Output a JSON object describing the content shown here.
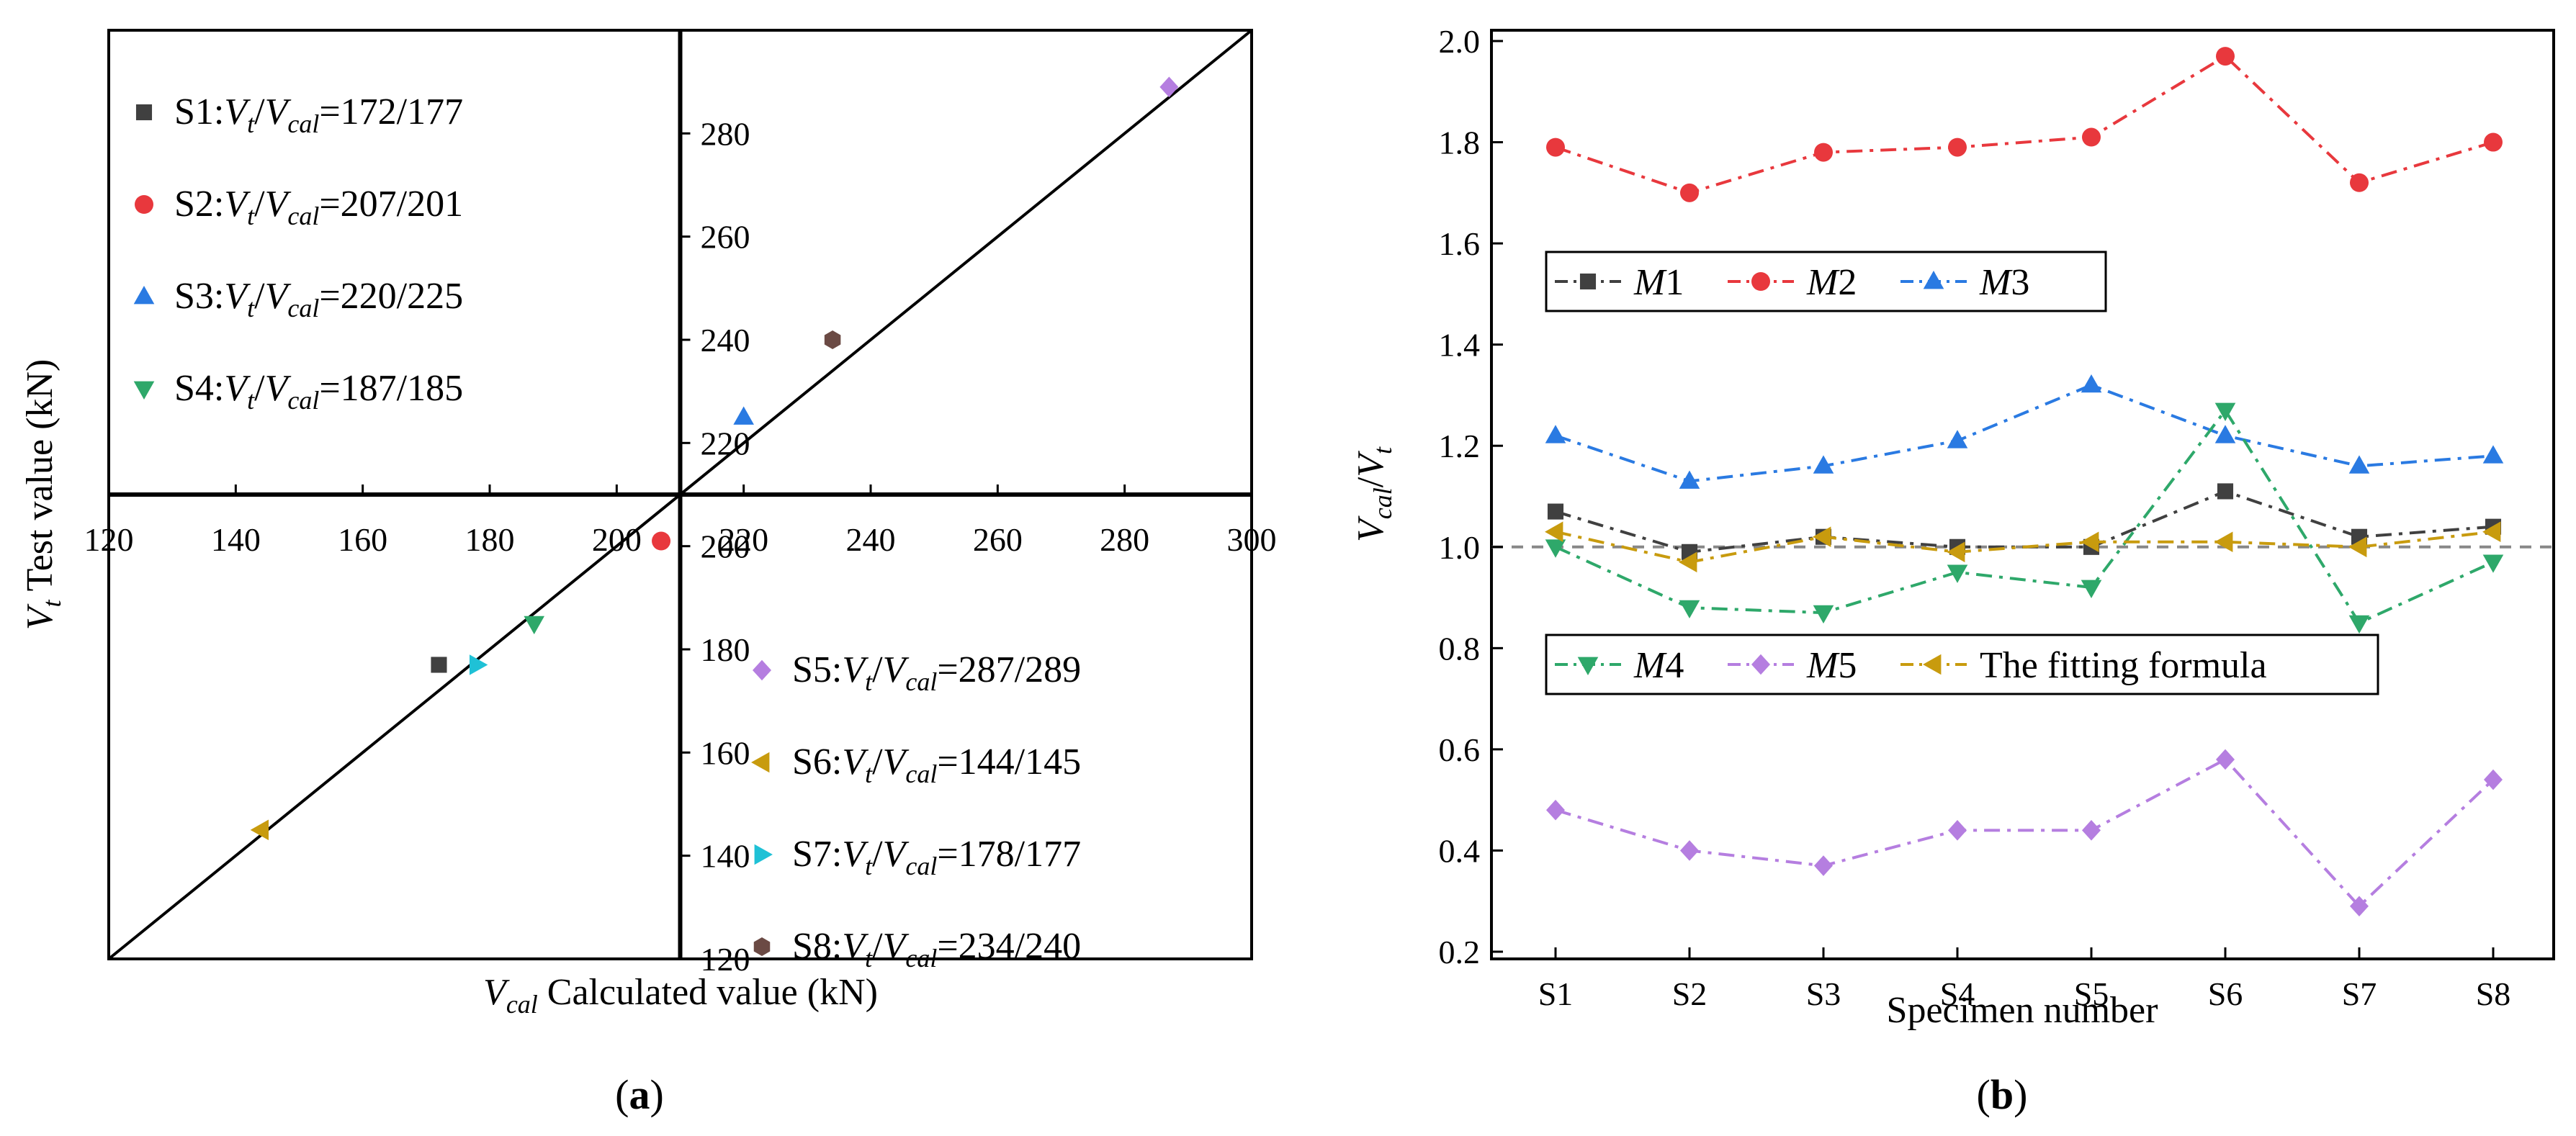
{
  "chart_data": [
    {
      "panel_label": "(a)",
      "type": "scatter",
      "title": "",
      "xlabel": {
        "symbol": "V",
        "sub": "cal",
        "text": " Calculated value (kN)"
      },
      "ylabel": {
        "symbol": "V",
        "sub": "t",
        "text": " Test value (kN)"
      },
      "xlim": [
        120,
        300
      ],
      "ylim": [
        120,
        300
      ],
      "x_axis_crosses_y": 210,
      "y_axis_crosses_x": 210,
      "x_ticks": [
        120,
        140,
        160,
        180,
        200,
        220,
        240,
        260,
        280,
        300
      ],
      "y_ticks": [
        120,
        140,
        160,
        180,
        200,
        220,
        240,
        260,
        280
      ],
      "reference_line": {
        "from": [
          120,
          120
        ],
        "to": [
          300,
          300
        ],
        "color": "#000000"
      },
      "series": [
        {
          "name": "S1",
          "x": 172,
          "y": 177,
          "ratio": "=172/177",
          "marker": "square",
          "color": "#404040"
        },
        {
          "name": "S2",
          "x": 207,
          "y": 201,
          "ratio": "=207/201",
          "marker": "circle",
          "color": "#e8383d"
        },
        {
          "name": "S3",
          "x": 220,
          "y": 225,
          "ratio": "=220/225",
          "marker": "triangle-up",
          "color": "#2a7ae2"
        },
        {
          "name": "S4",
          "x": 187,
          "y": 185,
          "ratio": "=187/185",
          "marker": "triangle-down",
          "color": "#2ea86a"
        },
        {
          "name": "S5",
          "x": 287,
          "y": 289,
          "ratio": "=287/289",
          "marker": "diamond",
          "color": "#b57ee0"
        },
        {
          "name": "S6",
          "x": 144,
          "y": 145,
          "ratio": "=144/145",
          "marker": "triangle-left",
          "color": "#c89b0e"
        },
        {
          "name": "S7",
          "x": 178,
          "y": 177,
          "ratio": "=178/177",
          "marker": "triangle-right",
          "color": "#1fc1d6"
        },
        {
          "name": "S8",
          "x": 234,
          "y": 240,
          "ratio": "=234/240",
          "marker": "hexagon",
          "color": "#6b4a44"
        }
      ],
      "legend_top_left": [
        "S1",
        "S2",
        "S3",
        "S4"
      ],
      "legend_bottom_right": [
        "S5",
        "S6",
        "S7",
        "S8"
      ]
    },
    {
      "panel_label": "(b)",
      "type": "line",
      "title": "",
      "xlabel": "Specimen number",
      "ylabel": {
        "symbol": "V",
        "sub": "cal",
        "mid": "/",
        "symbol2": "V",
        "sub2": "t"
      },
      "categories": [
        "S1",
        "S2",
        "S3",
        "S4",
        "S5",
        "S6",
        "S7",
        "S8"
      ],
      "ylim": [
        0.2,
        2.0
      ],
      "y_ticks": [
        "0.2",
        "0.4",
        "0.6",
        "0.8",
        "1.0",
        "1.2",
        "1.4",
        "1.6",
        "1.8",
        "2.0"
      ],
      "reference_line": {
        "y": 1.0,
        "style": "dashed",
        "color": "#888888"
      },
      "series": [
        {
          "name": "M",
          "num": "1",
          "italic": true,
          "marker": "square",
          "color": "#404040",
          "values": [
            1.07,
            0.99,
            1.02,
            1.0,
            1.0,
            1.11,
            1.02,
            1.04
          ]
        },
        {
          "name": "M",
          "num": "2",
          "italic": true,
          "marker": "circle",
          "color": "#e8383d",
          "values": [
            1.79,
            1.7,
            1.78,
            1.79,
            1.81,
            1.97,
            1.72,
            1.8
          ]
        },
        {
          "name": "M",
          "num": "3",
          "italic": true,
          "marker": "triangle-up",
          "color": "#2a7ae2",
          "values": [
            1.22,
            1.13,
            1.16,
            1.21,
            1.32,
            1.22,
            1.16,
            1.18
          ]
        },
        {
          "name": "M",
          "num": "4",
          "italic": true,
          "marker": "triangle-down",
          "color": "#2ea86a",
          "values": [
            1.0,
            0.88,
            0.87,
            0.95,
            0.92,
            1.27,
            0.85,
            0.97
          ]
        },
        {
          "name": "M",
          "num": "5",
          "italic": true,
          "marker": "diamond",
          "color": "#b57ee0",
          "values": [
            0.48,
            0.4,
            0.37,
            0.44,
            0.44,
            0.58,
            0.29,
            0.54
          ]
        },
        {
          "name": "The fitting formula",
          "num": "",
          "italic": false,
          "marker": "triangle-left",
          "color": "#c89b0e",
          "values": [
            1.03,
            0.97,
            1.02,
            0.99,
            1.01,
            1.01,
            1.0,
            1.03
          ]
        }
      ],
      "legend_groups": [
        [
          0,
          1,
          2
        ],
        [
          3,
          4,
          5
        ]
      ]
    }
  ]
}
